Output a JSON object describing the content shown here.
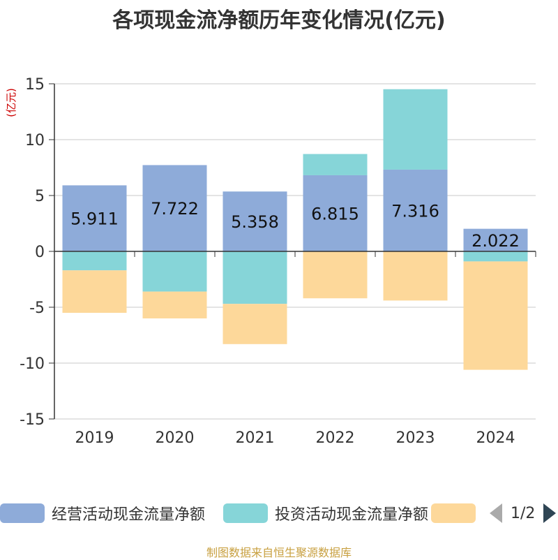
{
  "chart_data": {
    "type": "bar",
    "stacked": true,
    "title": "各项现金流净额历年变化情况(亿元)",
    "unit_label": "(亿元)",
    "categories": [
      "2019",
      "2020",
      "2021",
      "2022",
      "2023",
      "2024"
    ],
    "ylim": [
      -15,
      15
    ],
    "yticks": [
      15,
      10,
      5,
      0,
      -5,
      -10,
      -15
    ],
    "grid": true,
    "legend_position": "bottom",
    "series": [
      {
        "name": "经营活动现金流量净额",
        "color": "#8eabd9",
        "values": [
          5.911,
          7.722,
          5.358,
          6.815,
          7.316,
          2.022
        ],
        "labels": [
          "5.911",
          "7.722",
          "5.358",
          "6.815",
          "7.316",
          "2.022"
        ]
      },
      {
        "name": "投资活动现金流量净额",
        "color": "#86d5d8",
        "values": [
          -1.7,
          -3.6,
          -4.7,
          1.9,
          7.2,
          -0.9
        ]
      },
      {
        "name": "",
        "color": "#fdd89a",
        "values": [
          -3.8,
          -2.4,
          -3.6,
          -4.2,
          -4.4,
          -9.7
        ]
      }
    ]
  },
  "legend": {
    "items": [
      "经营活动现金流量净额",
      "投资活动现金流量净额",
      ""
    ],
    "pager_text": "1/2"
  },
  "source_note": "制图数据来自恒生聚源数据库"
}
